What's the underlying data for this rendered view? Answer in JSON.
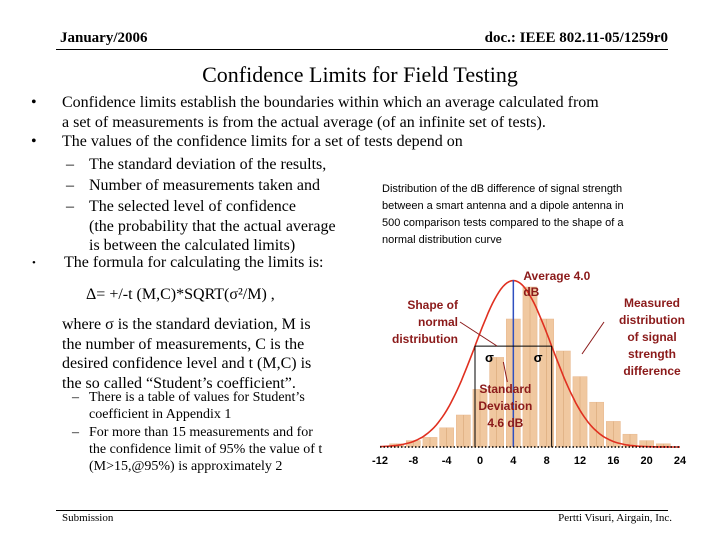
{
  "header": {
    "date": "January/2006",
    "doc": "doc.: IEEE 802.11-05/1259r0"
  },
  "title": "Confidence Limits for Field Testing",
  "bullets": [
    {
      "marker": "•",
      "text": "Confidence limits establish the boundaries within which an average calculated from",
      "cont": "a set of measurements is from the actual average (of an infinite set of tests)."
    },
    {
      "marker": "•",
      "text": "The values of the confidence limits for a set of tests depend on"
    },
    {
      "marker": "•",
      "text": "The formula for calculating the limits is:"
    }
  ],
  "sub_bullets": [
    {
      "marker": "–",
      "text": "The standard deviation of the results,"
    },
    {
      "marker": "–",
      "text": "Number of measurements taken and"
    },
    {
      "marker": "–",
      "text": "The selected level of confidence",
      "cont": [
        "(the probability that the actual average",
        "is between the calculated limits)"
      ]
    }
  ],
  "formula": "Δ= +/-t (M,C)*SQRT(σ²/M) ,",
  "where_lines": [
    "where σ is the standard deviation, M is",
    "the number of measurements, C is the",
    "desired confidence level and  t (M,C) is",
    "the so called “Student’s coefficient”."
  ],
  "notes": [
    {
      "marker": "–",
      "lines": [
        "There is a table of values for Student’s",
        "coefficient in Appendix 1"
      ]
    },
    {
      "marker": "–",
      "lines": [
        "For more than 15 measurements and for",
        "the confidence limit of 95%  the value of t",
        "(M>15,@95%) is approximately 2"
      ]
    }
  ],
  "caption": [
    "Distribution of the dB difference of signal strength",
    "between a smart antenna and a dipole antenna in",
    "500 comparison tests compared to the shape of a",
    "normal distribution curve"
  ],
  "chart_data": {
    "type": "bar",
    "x": [
      -12,
      -10,
      -8,
      -6,
      -4,
      -2,
      0,
      2,
      4,
      6,
      8,
      10,
      12,
      14,
      16,
      18,
      20,
      22,
      24
    ],
    "values": [
      0,
      1,
      2,
      3,
      6,
      10,
      18,
      28,
      40,
      50,
      40,
      30,
      22,
      14,
      8,
      4,
      2,
      1,
      0
    ],
    "tick_labels": [
      "-12",
      "-8",
      "-4",
      "0",
      "4",
      "8",
      "12",
      "16",
      "20",
      "24"
    ],
    "xlim": [
      -12,
      24
    ],
    "series": [
      {
        "name": "Measured distribution of signal strength difference",
        "color": "#f0c8a0"
      },
      {
        "name": "Shape of normal distribution",
        "color": "#e03020"
      }
    ],
    "mean": 4.0,
    "std": 4.6,
    "annotations": {
      "average": [
        "Average 4.0",
        "dB"
      ],
      "normal": [
        "Shape of",
        "normal",
        "distribution"
      ],
      "measured": [
        "Measured",
        "distribution",
        "of signal",
        "strength",
        "difference"
      ],
      "sigma_left": "σ",
      "sigma_right": "σ",
      "stddev": [
        "Standard",
        "Deviation",
        "4.6 dB"
      ]
    },
    "colors": {
      "annotation": "#8b1a1a",
      "mean_line": "#3050c0",
      "sigma_box": "#000000",
      "gridline": "#000000"
    }
  },
  "footer": {
    "left": "Submission",
    "right": "Pertti Visuri, Airgain, Inc."
  }
}
